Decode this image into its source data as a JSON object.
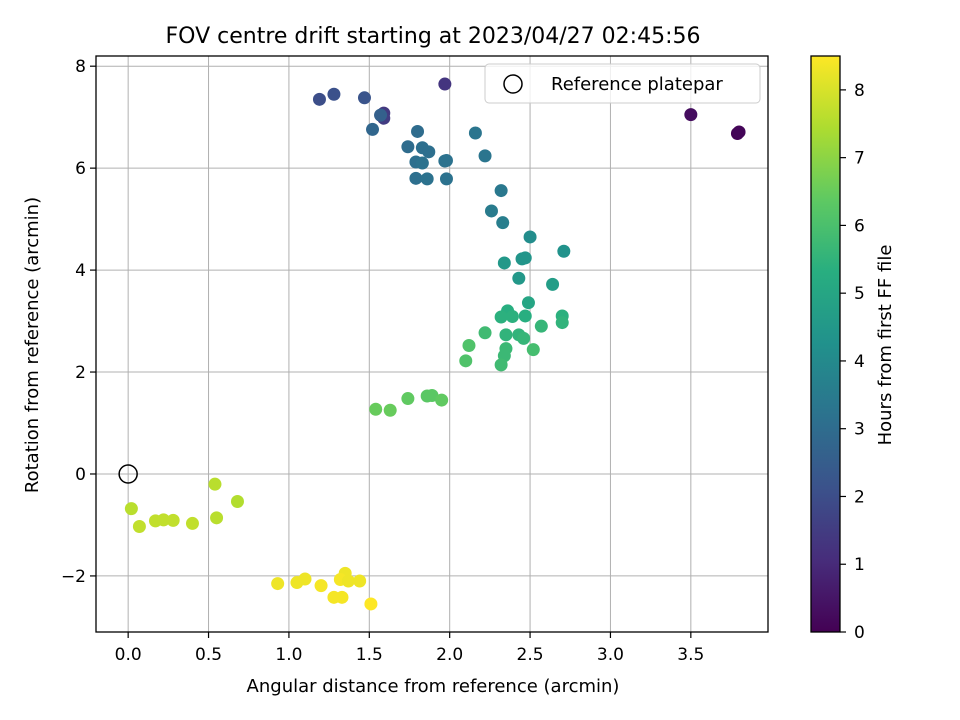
{
  "chart_data": {
    "type": "scatter",
    "title": "FOV centre drift starting at 2023/04/27 02:45:56",
    "xlabel": "Angular distance from reference (arcmin)",
    "ylabel": "Rotation from reference (arcmin)",
    "xlim": [
      -0.2,
      3.98
    ],
    "ylim": [
      -3.1,
      8.2
    ],
    "xticks": [
      0.0,
      0.5,
      1.0,
      1.5,
      2.0,
      2.5,
      3.0,
      3.5
    ],
    "xtick_labels": [
      "0.0",
      "0.5",
      "1.0",
      "1.5",
      "2.0",
      "2.5",
      "3.0",
      "3.5"
    ],
    "yticks": [
      -2,
      0,
      2,
      4,
      6,
      8
    ],
    "ytick_labels": [
      "−2",
      "0",
      "2",
      "4",
      "6",
      "8"
    ],
    "grid": true,
    "legend": {
      "placement": "top-right",
      "entries": [
        "Reference platepar"
      ]
    },
    "reference_point": {
      "name": "Reference platepar",
      "x": 0.0,
      "y": 0.0
    },
    "colorbar": {
      "label": "Hours from first FF file",
      "colormap": "viridis",
      "range": [
        0,
        8.5
      ],
      "ticks": [
        0,
        1,
        2,
        3,
        4,
        5,
        6,
        7,
        8
      ],
      "tick_labels": [
        "0",
        "1",
        "2",
        "3",
        "4",
        "5",
        "6",
        "7",
        "8"
      ]
    },
    "points": [
      {
        "x": 3.79,
        "y": 6.68,
        "c": 0.05
      },
      {
        "x": 3.8,
        "y": 6.71,
        "c": 0.1
      },
      {
        "x": 3.5,
        "y": 7.05,
        "c": 0.3
      },
      {
        "x": 1.97,
        "y": 7.65,
        "c": 1.3
      },
      {
        "x": 1.59,
        "y": 7.08,
        "c": 1.4
      },
      {
        "x": 1.59,
        "y": 6.98,
        "c": 1.5
      },
      {
        "x": 1.19,
        "y": 7.35,
        "c": 2.0
      },
      {
        "x": 1.28,
        "y": 7.45,
        "c": 2.1
      },
      {
        "x": 1.47,
        "y": 7.38,
        "c": 2.2
      },
      {
        "x": 1.57,
        "y": 7.04,
        "c": 2.6
      },
      {
        "x": 1.52,
        "y": 6.76,
        "c": 2.8
      },
      {
        "x": 1.8,
        "y": 6.72,
        "c": 3.0
      },
      {
        "x": 1.74,
        "y": 6.42,
        "c": 3.0
      },
      {
        "x": 1.83,
        "y": 6.4,
        "c": 3.1
      },
      {
        "x": 1.87,
        "y": 6.32,
        "c": 3.1
      },
      {
        "x": 1.79,
        "y": 6.12,
        "c": 3.1
      },
      {
        "x": 1.83,
        "y": 6.1,
        "c": 3.2
      },
      {
        "x": 1.97,
        "y": 6.14,
        "c": 3.2
      },
      {
        "x": 1.98,
        "y": 6.15,
        "c": 3.2
      },
      {
        "x": 1.79,
        "y": 5.8,
        "c": 3.1
      },
      {
        "x": 1.86,
        "y": 5.79,
        "c": 3.2
      },
      {
        "x": 1.98,
        "y": 5.79,
        "c": 3.2
      },
      {
        "x": 2.16,
        "y": 6.69,
        "c": 3.3
      },
      {
        "x": 2.22,
        "y": 6.24,
        "c": 3.3
      },
      {
        "x": 2.32,
        "y": 5.56,
        "c": 3.4
      },
      {
        "x": 2.26,
        "y": 5.16,
        "c": 3.5
      },
      {
        "x": 2.33,
        "y": 4.93,
        "c": 3.6
      },
      {
        "x": 2.5,
        "y": 4.65,
        "c": 4.1
      },
      {
        "x": 2.71,
        "y": 4.37,
        "c": 4.3
      },
      {
        "x": 2.45,
        "y": 4.22,
        "c": 4.4
      },
      {
        "x": 2.47,
        "y": 4.24,
        "c": 4.4
      },
      {
        "x": 2.34,
        "y": 4.14,
        "c": 4.5
      },
      {
        "x": 2.43,
        "y": 3.84,
        "c": 4.5
      },
      {
        "x": 2.64,
        "y": 3.72,
        "c": 4.7
      },
      {
        "x": 2.49,
        "y": 3.36,
        "c": 5.0
      },
      {
        "x": 2.36,
        "y": 3.2,
        "c": 5.3
      },
      {
        "x": 2.32,
        "y": 3.08,
        "c": 5.4
      },
      {
        "x": 2.39,
        "y": 3.09,
        "c": 5.4
      },
      {
        "x": 2.47,
        "y": 3.1,
        "c": 5.3
      },
      {
        "x": 2.7,
        "y": 3.1,
        "c": 5.4
      },
      {
        "x": 2.7,
        "y": 2.97,
        "c": 5.5
      },
      {
        "x": 2.57,
        "y": 2.9,
        "c": 5.6
      },
      {
        "x": 2.35,
        "y": 2.73,
        "c": 5.5
      },
      {
        "x": 2.43,
        "y": 2.73,
        "c": 5.5
      },
      {
        "x": 2.46,
        "y": 2.66,
        "c": 5.6
      },
      {
        "x": 2.22,
        "y": 2.77,
        "c": 5.8
      },
      {
        "x": 2.12,
        "y": 2.52,
        "c": 6.1
      },
      {
        "x": 2.35,
        "y": 2.46,
        "c": 5.7
      },
      {
        "x": 2.52,
        "y": 2.44,
        "c": 5.9
      },
      {
        "x": 2.34,
        "y": 2.32,
        "c": 5.7
      },
      {
        "x": 2.1,
        "y": 2.22,
        "c": 6.1
      },
      {
        "x": 2.32,
        "y": 2.14,
        "c": 5.8
      },
      {
        "x": 1.86,
        "y": 1.53,
        "c": 6.3
      },
      {
        "x": 1.89,
        "y": 1.54,
        "c": 6.3
      },
      {
        "x": 1.74,
        "y": 1.48,
        "c": 6.4
      },
      {
        "x": 1.95,
        "y": 1.45,
        "c": 6.4
      },
      {
        "x": 1.54,
        "y": 1.27,
        "c": 6.5
      },
      {
        "x": 1.63,
        "y": 1.25,
        "c": 6.5
      },
      {
        "x": 0.54,
        "y": -0.2,
        "c": 7.6
      },
      {
        "x": 0.68,
        "y": -0.54,
        "c": 7.5
      },
      {
        "x": 0.02,
        "y": -0.68,
        "c": 7.6
      },
      {
        "x": 0.55,
        "y": -0.86,
        "c": 7.6
      },
      {
        "x": 0.17,
        "y": -0.92,
        "c": 7.7
      },
      {
        "x": 0.22,
        "y": -0.9,
        "c": 7.7
      },
      {
        "x": 0.28,
        "y": -0.91,
        "c": 7.7
      },
      {
        "x": 0.4,
        "y": -0.97,
        "c": 7.7
      },
      {
        "x": 0.07,
        "y": -1.03,
        "c": 7.7
      },
      {
        "x": 1.35,
        "y": -1.95,
        "c": 8.3
      },
      {
        "x": 1.32,
        "y": -2.07,
        "c": 8.4
      },
      {
        "x": 1.37,
        "y": -2.1,
        "c": 8.3
      },
      {
        "x": 1.44,
        "y": -2.1,
        "c": 8.3
      },
      {
        "x": 1.1,
        "y": -2.06,
        "c": 8.3
      },
      {
        "x": 1.05,
        "y": -2.13,
        "c": 8.3
      },
      {
        "x": 0.93,
        "y": -2.15,
        "c": 8.3
      },
      {
        "x": 1.2,
        "y": -2.19,
        "c": 8.4
      },
      {
        "x": 1.28,
        "y": -2.42,
        "c": 8.4
      },
      {
        "x": 1.33,
        "y": -2.42,
        "c": 8.4
      },
      {
        "x": 1.51,
        "y": -2.55,
        "c": 8.5
      }
    ]
  }
}
